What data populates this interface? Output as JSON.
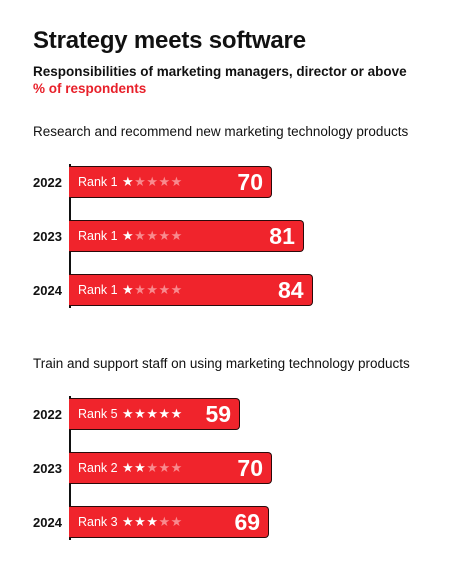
{
  "chart_data": {
    "type": "bar",
    "orientation": "horizontal",
    "title": "Strategy meets software",
    "subtitle": "Responsibilities of marketing managers, director or above",
    "unit": "% of respondents",
    "colors": {
      "bar": "#f0242c",
      "unit_text": "#e8202a",
      "star_inactive": "#f88a8e"
    },
    "panels": [
      {
        "title": "Research and recommend new marketing technology products",
        "categories": [
          "2022",
          "2023",
          "2024"
        ],
        "values": [
          70,
          81,
          84
        ],
        "ranks": [
          1,
          1,
          1
        ],
        "rank_labels": [
          "Rank 1",
          "Rank 1",
          "Rank 1"
        ],
        "stars_filled": [
          1,
          1,
          1
        ],
        "stars_total": 5
      },
      {
        "title": "Train and support staff on using marketing technology products",
        "categories": [
          "2022",
          "2023",
          "2024"
        ],
        "values": [
          59,
          70,
          69
        ],
        "ranks": [
          5,
          2,
          3
        ],
        "rank_labels": [
          "Rank 5",
          "Rank 2",
          "Rank 3"
        ],
        "stars_filled": [
          5,
          2,
          3
        ],
        "stars_total": 5
      }
    ]
  }
}
